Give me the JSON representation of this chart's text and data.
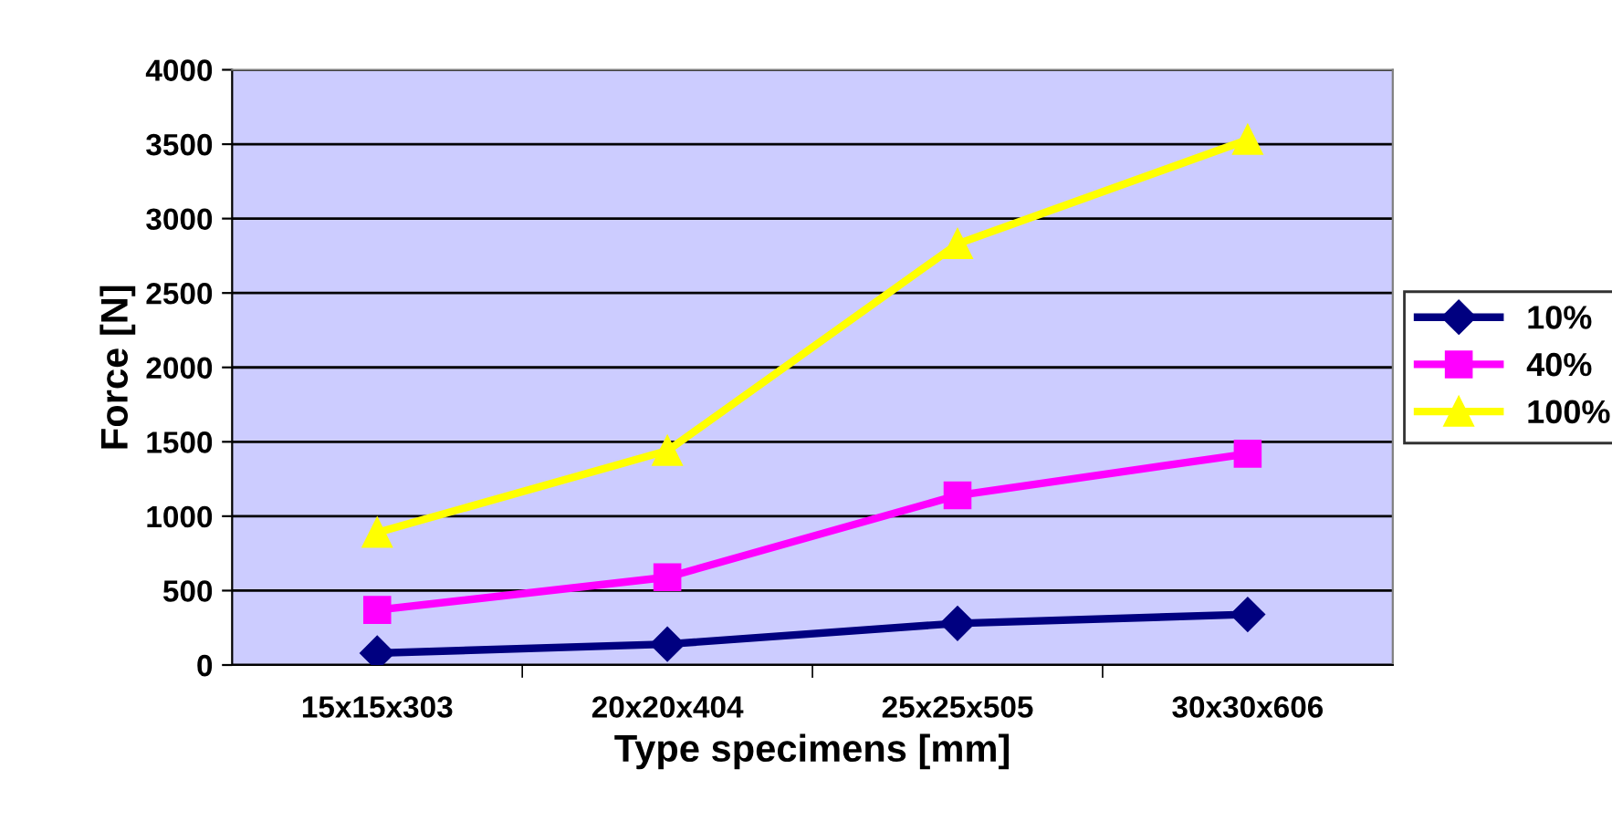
{
  "chart_data": {
    "type": "line",
    "xlabel": "Type specimens [mm]",
    "ylabel": "Force [N]",
    "categories": [
      "15x15x303",
      "20x20x404",
      "25x25x505",
      "30x30x606"
    ],
    "series": [
      {
        "name": "10%",
        "color": "#000080",
        "marker": "diamond",
        "values": [
          80,
          140,
          280,
          340
        ]
      },
      {
        "name": "40%",
        "color": "#ff00ff",
        "marker": "square",
        "values": [
          370,
          590,
          1140,
          1420
        ]
      },
      {
        "name": "100%",
        "color": "#ffff00",
        "marker": "triangle",
        "values": [
          890,
          1440,
          2830,
          3530
        ]
      }
    ],
    "ylim": [
      0,
      4000
    ],
    "yticks": [
      0,
      500,
      1000,
      1500,
      2000,
      2500,
      3000,
      3500,
      4000
    ],
    "grid": "y",
    "legend": "right",
    "line_style": "solid"
  }
}
